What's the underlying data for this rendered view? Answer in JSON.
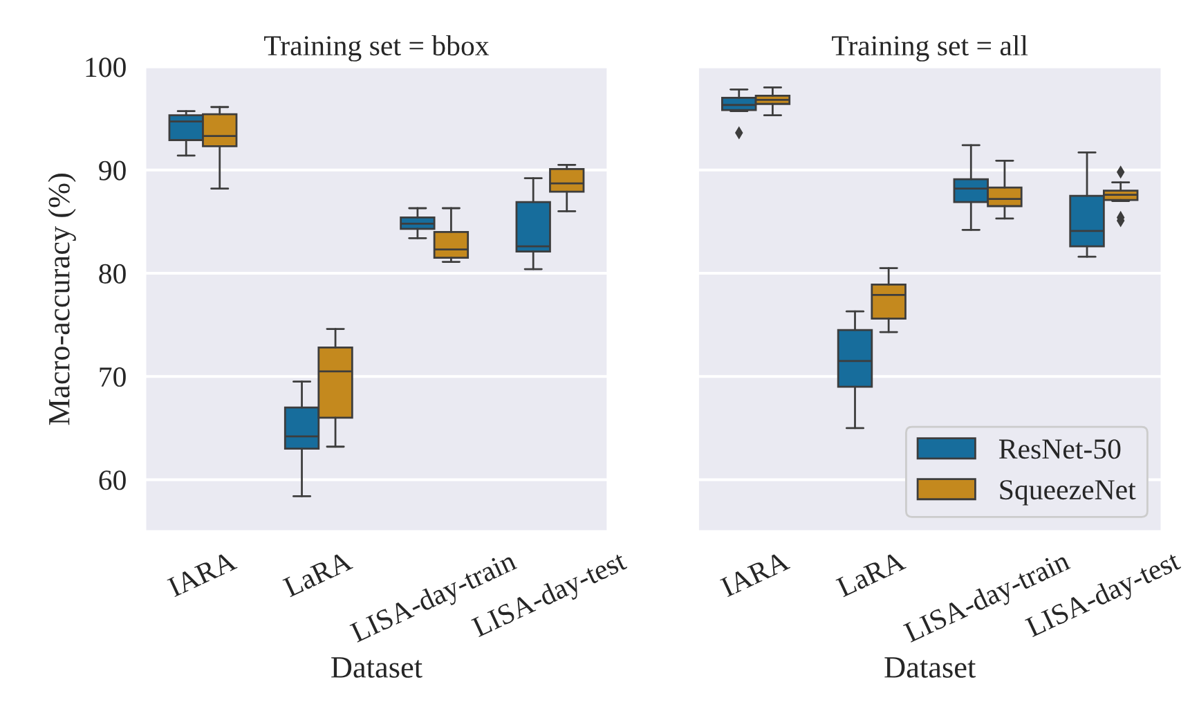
{
  "chart_data": [
    {
      "type": "box",
      "title": "Training set = bbox",
      "xlabel": "Dataset",
      "ylabel": "Macro-accuracy (%)",
      "categories": [
        "IARA",
        "LaRA",
        "LISA-day-train",
        "LISA-day-test"
      ],
      "ylim": [
        55,
        100
      ],
      "yticks": [
        60,
        70,
        80,
        90,
        100
      ],
      "grid": "y",
      "legend": false,
      "marker": "diamond",
      "series": [
        {
          "color": "#176d9c",
          "boxes": [
            {
              "low": 91.4,
              "q1": 92.9,
              "median": 94.7,
              "q3": 95.3,
              "high": 95.7
            },
            {
              "low": 58.4,
              "q1": 63.0,
              "median": 64.2,
              "q3": 67.0,
              "high": 69.5
            },
            {
              "low": 83.4,
              "q1": 84.3,
              "median": 84.8,
              "q3": 85.4,
              "high": 86.3
            },
            {
              "low": 80.4,
              "q1": 82.1,
              "median": 82.6,
              "q3": 86.9,
              "high": 89.2
            }
          ]
        },
        {
          "color": "#c4891e",
          "boxes": [
            {
              "low": 88.2,
              "q1": 92.3,
              "median": 93.3,
              "q3": 95.4,
              "high": 96.1
            },
            {
              "low": 63.2,
              "q1": 66.0,
              "median": 70.5,
              "q3": 72.8,
              "high": 74.6
            },
            {
              "low": 81.1,
              "q1": 81.5,
              "median": 82.3,
              "q3": 84.0,
              "high": 86.3
            },
            {
              "low": 86.0,
              "q1": 87.9,
              "median": 88.7,
              "q3": 90.1,
              "high": 90.5
            }
          ]
        }
      ]
    },
    {
      "type": "box",
      "title": "Training set = all",
      "xlabel": "Dataset",
      "categories": [
        "IARA",
        "LaRA",
        "LISA-day-train",
        "LISA-day-test"
      ],
      "ylim": [
        55,
        100
      ],
      "yticks": [
        60,
        70,
        80,
        90,
        100
      ],
      "tick_labels": "x",
      "grid": "y",
      "legend": "bottom right",
      "marker": "diamond",
      "series": [
        {
          "name": "ResNet-50",
          "color": "#176d9c",
          "boxes": [
            {
              "low": 95.7,
              "q1": 95.8,
              "median": 96.3,
              "q3": 97.0,
              "high": 97.8,
              "outliers": [
                93.6
              ]
            },
            {
              "low": 65.0,
              "q1": 69.0,
              "median": 71.5,
              "q3": 74.5,
              "high": 76.3
            },
            {
              "low": 84.2,
              "q1": 86.9,
              "median": 88.2,
              "q3": 89.1,
              "high": 92.4
            },
            {
              "low": 81.6,
              "q1": 82.6,
              "median": 84.1,
              "q3": 87.5,
              "high": 91.7
            }
          ]
        },
        {
          "name": "SqueezeNet",
          "color": "#c4891e",
          "boxes": [
            {
              "low": 95.3,
              "q1": 96.4,
              "median": 96.8,
              "q3": 97.2,
              "high": 98.0
            },
            {
              "low": 74.3,
              "q1": 75.6,
              "median": 77.9,
              "q3": 78.9,
              "high": 80.5
            },
            {
              "low": 85.3,
              "q1": 86.5,
              "median": 87.2,
              "q3": 88.3,
              "high": 90.9
            },
            {
              "low": 87.0,
              "q1": 87.1,
              "median": 87.6,
              "q3": 88.0,
              "high": 88.8,
              "outliers": [
                89.8,
                85.4,
                85.1
              ]
            }
          ]
        }
      ]
    }
  ]
}
